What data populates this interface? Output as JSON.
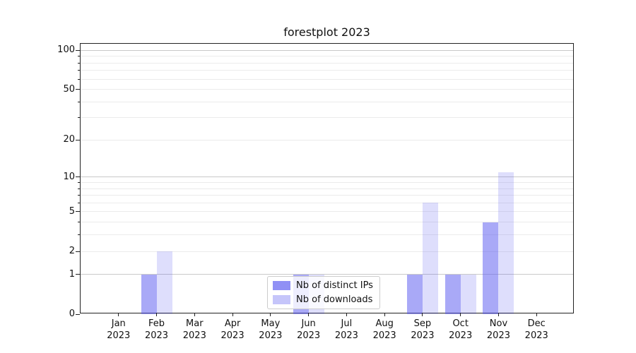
{
  "chart_data": {
    "type": "bar",
    "title": "forestplot 2023",
    "categories": [
      "Jan",
      "Feb",
      "Mar",
      "Apr",
      "May",
      "Jun",
      "Jul",
      "Aug",
      "Sep",
      "Oct",
      "Nov",
      "Dec"
    ],
    "year_label": "2023",
    "series": [
      {
        "name": "Nb of distinct IPs",
        "color": "#5a5af0",
        "alpha": 0.52,
        "values": [
          0,
          1,
          0,
          0,
          0,
          1,
          0,
          0,
          1,
          1,
          4,
          0
        ]
      },
      {
        "name": "Nb of downloads",
        "color": "#5a5af0",
        "alpha": 0.2,
        "values": [
          0,
          2,
          0,
          0,
          0,
          1,
          0,
          0,
          6,
          1,
          11,
          0
        ]
      }
    ],
    "xlabel": "",
    "ylabel": "",
    "y_scale": "log1p",
    "ylim": [
      0,
      112
    ],
    "y_ticks": [
      0,
      1,
      2,
      5,
      10,
      20,
      50,
      100
    ],
    "y_minor_gridlines": [
      3,
      4,
      6,
      7,
      8,
      9,
      30,
      40,
      60,
      70,
      80,
      90
    ],
    "y_major_gridlines": [
      1,
      10,
      100
    ],
    "grid": true,
    "legend_position": "lower center",
    "colors": {
      "background": "#ffffff",
      "spine": "#222222",
      "grid_major": "#c9c9c9",
      "grid_minor": "#ebebeb",
      "text": "#111111"
    }
  }
}
